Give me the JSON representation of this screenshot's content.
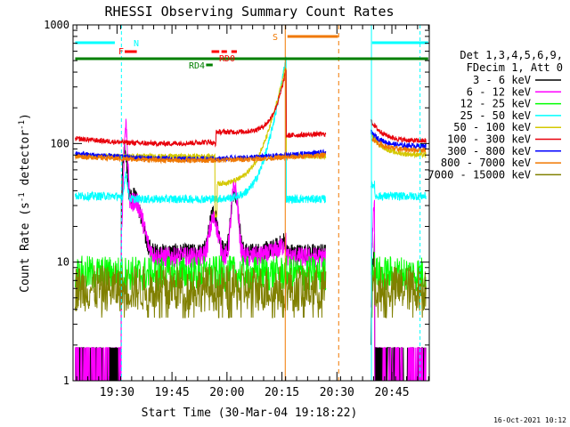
{
  "chart_data": {
    "type": "line",
    "title": "RHESSI Observing Summary Count Rates",
    "xlabel": "Start Time (30-Mar-04 19:18:22)",
    "ylabel_parts": [
      "Count Rate (s",
      "-1",
      " detector",
      "-1",
      ")"
    ],
    "y_scale": "log",
    "ylim": [
      1,
      1000
    ],
    "y_ticks": [
      1,
      10,
      100,
      1000
    ],
    "xlim_minutes": [
      19.3,
      20.92
    ],
    "x_ticks": [
      {
        "t": "19:30",
        "m": 19.5
      },
      {
        "t": "19:45",
        "m": 19.75
      },
      {
        "t": "20:00",
        "m": 20.0
      },
      {
        "t": "20:15",
        "m": 20.25
      },
      {
        "t": "20:30",
        "m": 20.5
      },
      {
        "t": "20:45",
        "m": 20.75
      }
    ],
    "footer_date": "16-Oct-2021 10:12",
    "legend_header": [
      "Det 1,3,4,5,6,9,",
      "FDecim 1, Att 0"
    ],
    "series": [
      {
        "name": "3 - 6 keV",
        "color": "#000000"
      },
      {
        "name": "6 - 12 keV",
        "color": "#ff00ff"
      },
      {
        "name": "12 - 25 keV",
        "color": "#00ff00"
      },
      {
        "name": "25 - 50 keV",
        "color": "#00ffff"
      },
      {
        "name": "50 - 100 keV",
        "color": "#d4c800"
      },
      {
        "name": "100 - 300 keV",
        "color": "#e8000b"
      },
      {
        "name": "300 - 800 keV",
        "color": "#0000ff"
      },
      {
        "name": "800 - 7000 keV",
        "color": "#f07800"
      },
      {
        "name": "7000 - 15000 keV",
        "color": "#808000"
      }
    ],
    "flags": [
      {
        "label": "N",
        "color": "#00ffff"
      },
      {
        "label": "F",
        "color": "#ff0000"
      },
      {
        "label": "RD0",
        "color": "#ff0000"
      },
      {
        "label": "RD4",
        "color": "#008000"
      },
      {
        "label": "S",
        "color": "#f07800"
      }
    ]
  }
}
